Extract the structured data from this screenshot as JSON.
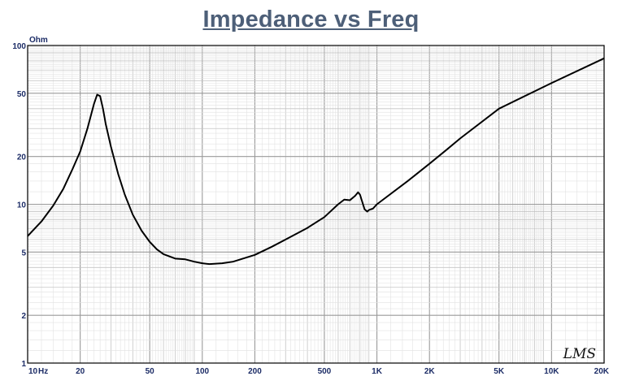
{
  "chart_data": {
    "type": "line",
    "title": "Impedance vs Freq",
    "ylabel": "Ohm",
    "xscale": "log",
    "yscale": "log",
    "xlim": [
      10,
      20000
    ],
    "ylim": [
      1,
      100
    ],
    "grid": true,
    "x_tick_labels": [
      {
        "value": 10,
        "label": "10"
      },
      {
        "value": 20,
        "label": "20"
      },
      {
        "value": 50,
        "label": "50"
      },
      {
        "value": 100,
        "label": "100"
      },
      {
        "value": 200,
        "label": "200"
      },
      {
        "value": 500,
        "label": "500"
      },
      {
        "value": 1000,
        "label": "1K"
      },
      {
        "value": 2000,
        "label": "2K"
      },
      {
        "value": 5000,
        "label": "5K"
      },
      {
        "value": 10000,
        "label": "10K"
      },
      {
        "value": 20000,
        "label": "20K"
      }
    ],
    "x_unit": "Hz",
    "y_tick_labels": [
      {
        "value": 1,
        "label": "1"
      },
      {
        "value": 2,
        "label": "2"
      },
      {
        "value": 5,
        "label": "5"
      },
      {
        "value": 10,
        "label": "10"
      },
      {
        "value": 20,
        "label": "20"
      },
      {
        "value": 50,
        "label": "50"
      },
      {
        "value": 100,
        "label": "100"
      }
    ],
    "series": [
      {
        "line_color": "#000000",
        "x": [
          10,
          12,
          14,
          16,
          18,
          20,
          22,
          24,
          25,
          26,
          27,
          28,
          30,
          33,
          36,
          40,
          45,
          50,
          55,
          60,
          70,
          80,
          90,
          100,
          110,
          130,
          150,
          200,
          250,
          300,
          400,
          500,
          600,
          650,
          700,
          750,
          780,
          800,
          850,
          880,
          900,
          950,
          1000,
          1500,
          2000,
          2500,
          3000,
          5000,
          10000,
          20000
        ],
        "y": [
          6.3,
          7.8,
          9.8,
          12.5,
          16.5,
          21.5,
          30,
          43,
          49,
          48,
          40,
          32,
          23,
          15.5,
          11.5,
          8.6,
          6.8,
          5.8,
          5.2,
          4.85,
          4.55,
          4.5,
          4.35,
          4.25,
          4.2,
          4.25,
          4.35,
          4.8,
          5.4,
          6.0,
          7.1,
          8.3,
          10.0,
          10.7,
          10.6,
          11.3,
          11.9,
          11.5,
          9.3,
          9.0,
          9.2,
          9.4,
          10.0,
          14.0,
          18.0,
          22.0,
          26.0,
          40.0,
          58.0,
          83.0
        ]
      }
    ]
  },
  "watermark": "LMS"
}
